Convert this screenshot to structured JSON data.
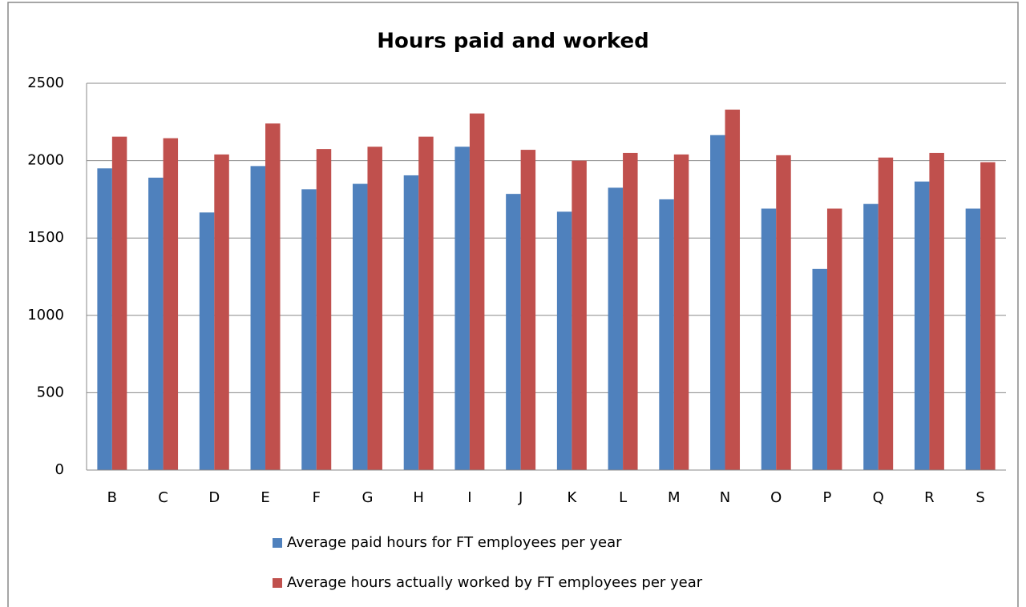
{
  "chart_data": {
    "type": "bar",
    "title": "Hours paid and worked",
    "categories": [
      "B",
      "C",
      "D",
      "E",
      "F",
      "G",
      "H",
      "I",
      "J",
      "K",
      "L",
      "M",
      "N",
      "O",
      "P",
      "Q",
      "R",
      "S"
    ],
    "series": [
      {
        "name": "Average paid hours for FT employees per year",
        "color": "#4f81bd",
        "values": [
          1950,
          1890,
          1665,
          1965,
          1815,
          1850,
          1905,
          2090,
          1785,
          1670,
          1825,
          1750,
          2165,
          1690,
          1300,
          1720,
          1865,
          1690
        ]
      },
      {
        "name": "Average hours actually worked by FT employees per year",
        "color": "#c0504d",
        "values": [
          2155,
          2145,
          2040,
          2240,
          2075,
          2090,
          2155,
          2305,
          2070,
          2000,
          2050,
          2040,
          2330,
          2035,
          1690,
          2020,
          2050,
          1990
        ]
      }
    ],
    "ylim": [
      0,
      2500
    ],
    "yticks": [
      0,
      500,
      1000,
      1500,
      2000,
      2500
    ],
    "grid": true,
    "legend": "bottom"
  }
}
